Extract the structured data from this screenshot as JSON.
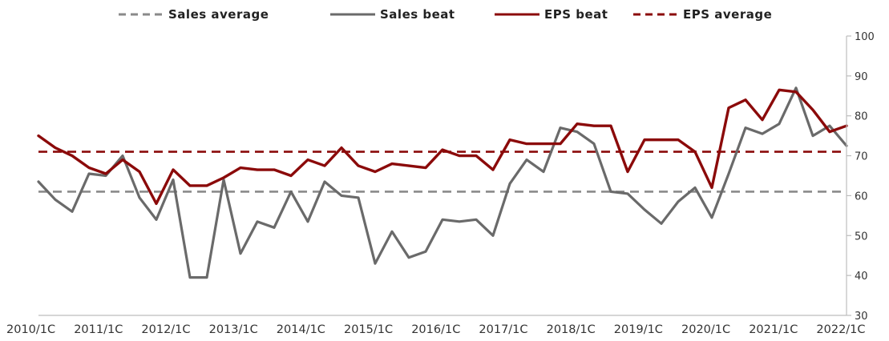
{
  "chart_data": {
    "type": "line",
    "title": "",
    "xlabel": "",
    "ylabel": "",
    "ylim": [
      30,
      100
    ],
    "yticks": [
      30,
      40,
      50,
      60,
      70,
      80,
      90,
      100
    ],
    "y_axis_side": "right",
    "grid": false,
    "legend_position": "top",
    "x_tick_labels": [
      "2010/1C",
      "2011/1C",
      "2012/1C",
      "2013/1C",
      "2014/1C",
      "2015/1C",
      "2016/1C",
      "2017/1C",
      "2018/1C",
      "2019/1C",
      "2020/1C",
      "2021/1C",
      "2022/1C"
    ],
    "x_tick_positions": [
      0,
      4,
      8,
      12,
      16,
      20,
      24,
      28,
      32,
      36,
      40,
      44,
      48
    ],
    "legend": [
      {
        "key": "sales_avg",
        "label": "Sales average",
        "style": "dashed",
        "color": "#8a8a8a"
      },
      {
        "key": "sales",
        "label": "Sales beat",
        "style": "solid",
        "color": "#6a6a6a"
      },
      {
        "key": "eps",
        "label": "EPS beat",
        "style": "solid",
        "color": "#8b0a0a"
      },
      {
        "key": "eps_avg",
        "label": "EPS average",
        "style": "dashed",
        "color": "#8b0a0a"
      }
    ],
    "series": [
      {
        "key": "sales",
        "name": "Sales beat",
        "color": "#6a6a6a",
        "style": "solid",
        "values": [
          63.5,
          59,
          56,
          65.5,
          65,
          70,
          59.5,
          54,
          64,
          39.5,
          39.5,
          64,
          45.5,
          53.5,
          52,
          61,
          53.5,
          63.5,
          60,
          59.5,
          43,
          51,
          44.5,
          46,
          54,
          53.5,
          54,
          50,
          63,
          69,
          66,
          77,
          76,
          73,
          61,
          60.5,
          56.5,
          53,
          58.5,
          62,
          54.5,
          65.5,
          77,
          75.5,
          78,
          87,
          75,
          77.5,
          72.5
        ]
      },
      {
        "key": "eps",
        "name": "EPS beat",
        "color": "#8b0a0a",
        "style": "solid",
        "values": [
          75,
          72,
          70,
          67,
          65.5,
          69,
          66,
          58,
          66.5,
          62.5,
          62.5,
          64.5,
          67,
          66.5,
          66.5,
          65,
          69,
          67.5,
          72,
          67.5,
          66,
          68,
          67.5,
          67,
          71.5,
          70,
          70,
          66.5,
          74,
          73,
          73,
          73,
          78,
          77.5,
          77.5,
          66,
          74,
          74,
          74,
          71,
          62,
          82,
          84,
          79,
          86.5,
          86,
          81.5,
          76,
          77.5
        ]
      },
      {
        "key": "sales_avg",
        "name": "Sales average",
        "color": "#8a8a8a",
        "style": "dashed",
        "constant": 61
      },
      {
        "key": "eps_avg",
        "name": "EPS average",
        "color": "#8b0a0a",
        "style": "dashed",
        "constant": 71
      }
    ]
  }
}
